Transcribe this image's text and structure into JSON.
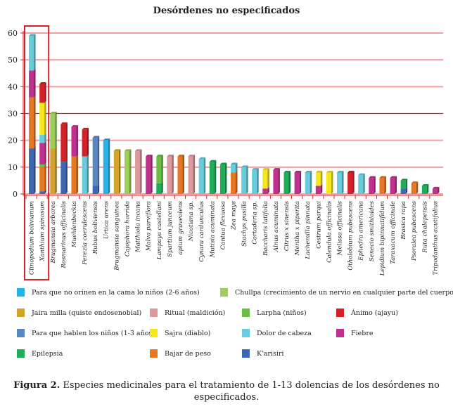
{
  "chart_data": {
    "type": "bar",
    "stacked": true,
    "title": "Desórdenes no especificados",
    "xlabel": "",
    "ylabel": "",
    "ylim": [
      0,
      60
    ],
    "yticks": [
      0,
      10,
      20,
      30,
      40,
      50,
      60
    ],
    "grid": true,
    "legend_position": "bottom",
    "highlight_box": [
      "Clinopodium bolivianum",
      "Xanthium spinosum"
    ],
    "legend": [
      {
        "key": "orinen",
        "label": "Para que no orinen en la cama lo niños (2-6 años)",
        "color": "#29B2E8"
      },
      {
        "key": "chullpa",
        "label": "Chullpa (crecimiento de un nervio en cualquier parte del cuerpo)",
        "color": "#9BCF5A"
      },
      {
        "key": "jaira",
        "label": "Jaira milla (quiste endosenobial)",
        "color": "#D4A32A"
      },
      {
        "key": "ritual",
        "label": "Ritual (maldición)",
        "color": "#DC9A9C"
      },
      {
        "key": "larpha",
        "label": "Larpha (niños)",
        "color": "#6ABE45"
      },
      {
        "key": "animo",
        "label": "Ánimo (ajayu)",
        "color": "#D52027"
      },
      {
        "key": "hablen",
        "label": "Para que hablen los niños (1-3 años)",
        "color": "#5A87BD"
      },
      {
        "key": "sajra",
        "label": "Sajra (diablo)",
        "color": "#F5E81A"
      },
      {
        "key": "dolor",
        "label": "Dolor de cabeza",
        "color": "#67CCDC"
      },
      {
        "key": "fiebre",
        "label": "Fiebre",
        "color": "#C2308F"
      },
      {
        "key": "epilepsia",
        "label": "Epilepsia",
        "color": "#1FAD59"
      },
      {
        "key": "bajar",
        "label": "Bajar de peso",
        "color": "#E87722"
      },
      {
        "key": "karisiri",
        "label": "K'arisiri",
        "color": "#3D66B3"
      }
    ],
    "categories": [
      {
        "name": "Clinopodium bolivianum",
        "stack": [
          [
            "karisiri",
            17
          ],
          [
            "bajar",
            19
          ],
          [
            "fiebre",
            10
          ],
          [
            "dolor",
            13
          ]
        ]
      },
      {
        "name": "Xanthium spinosum",
        "stack": [
          [
            "karisiri",
            1
          ],
          [
            "bajar",
            9
          ],
          [
            "larpha",
            1
          ],
          [
            "fiebre",
            8
          ],
          [
            "dolor",
            3
          ],
          [
            "sajra",
            12
          ],
          [
            "animo",
            7
          ]
        ]
      },
      {
        "name": "Brugmansia arborea",
        "stack": [
          [
            "jaira",
            17
          ],
          [
            "chullpa",
            13
          ]
        ]
      },
      {
        "name": "Rosmarinus officinalis",
        "stack": [
          [
            "karisiri",
            12
          ],
          [
            "animo",
            14
          ]
        ]
      },
      {
        "name": "Muehlenbeckia",
        "stack": [
          [
            "bajar",
            14
          ],
          [
            "fiebre",
            11
          ]
        ]
      },
      {
        "name": "Perezia coerulescens",
        "stack": [
          [
            "dolor",
            14
          ],
          [
            "animo",
            10
          ]
        ]
      },
      {
        "name": "Rubus boliviensis",
        "stack": [
          [
            "karisiri",
            3
          ],
          [
            "hablen",
            18
          ]
        ]
      },
      {
        "name": "Urtica urens",
        "stack": [
          [
            "orinen",
            20
          ]
        ]
      },
      {
        "name": "Brugmansia sanguinea",
        "stack": [
          [
            "jaira",
            16
          ]
        ]
      },
      {
        "name": "Cajophora horrida",
        "stack": [
          [
            "chullpa",
            16
          ]
        ]
      },
      {
        "name": "Matthiola incana",
        "stack": [
          [
            "ritual",
            16
          ]
        ]
      },
      {
        "name": "Malva parviflora",
        "stack": [
          [
            "fiebre",
            14
          ]
        ]
      },
      {
        "name": "Lampaya castellani",
        "stack": [
          [
            "epilepsia",
            4
          ],
          [
            "larpha",
            10
          ]
        ]
      },
      {
        "name": "Spartium junceum",
        "stack": [
          [
            "ritual",
            14
          ]
        ]
      },
      {
        "name": "apium graveolens",
        "stack": [
          [
            "bajar",
            14
          ]
        ]
      },
      {
        "name": "Nicotiana sp.",
        "stack": [
          [
            "ritual",
            14
          ]
        ]
      },
      {
        "name": "Cynara cardunculus",
        "stack": [
          [
            "dolor",
            13
          ]
        ]
      },
      {
        "name": "Mutisia acuminata",
        "stack": [
          [
            "epilepsia",
            12
          ]
        ]
      },
      {
        "name": "Cantua flexuosa",
        "stack": [
          [
            "epilepsia",
            11
          ]
        ]
      },
      {
        "name": "Zea mays",
        "stack": [
          [
            "bajar",
            8
          ],
          [
            "dolor",
            3
          ]
        ]
      },
      {
        "name": "Stachys pusilla",
        "stack": [
          [
            "dolor",
            10
          ]
        ]
      },
      {
        "name": "Cortaderia sp.",
        "stack": [
          [
            "dolor",
            9
          ]
        ]
      },
      {
        "name": "Baccharis latifolia",
        "stack": [
          [
            "fiebre",
            2
          ],
          [
            "sajra",
            7
          ]
        ]
      },
      {
        "name": "Alnus acuminata",
        "stack": [
          [
            "fiebre",
            9
          ]
        ]
      },
      {
        "name": "Citrus x sinensis",
        "stack": [
          [
            "epilepsia",
            8
          ]
        ]
      },
      {
        "name": "Mentha x piperita",
        "stack": [
          [
            "fiebre",
            8
          ]
        ]
      },
      {
        "name": "Lachemilla pinnata",
        "stack": [
          [
            "dolor",
            8
          ]
        ]
      },
      {
        "name": "Cestrum parqui",
        "stack": [
          [
            "fiebre",
            3
          ],
          [
            "sajra",
            5
          ]
        ]
      },
      {
        "name": "Calendula officinalis",
        "stack": [
          [
            "sajra",
            8
          ]
        ]
      },
      {
        "name": "Melissa officinalis",
        "stack": [
          [
            "dolor",
            8
          ]
        ]
      },
      {
        "name": "Otholobium pubescens",
        "stack": [
          [
            "animo",
            8
          ]
        ]
      },
      {
        "name": "Ephedra americana",
        "stack": [
          [
            "dolor",
            7
          ]
        ]
      },
      {
        "name": "Senecio smithioides",
        "stack": [
          [
            "fiebre",
            6
          ]
        ]
      },
      {
        "name": "Lepidium bipinnatifidum",
        "stack": [
          [
            "bajar",
            6
          ]
        ]
      },
      {
        "name": "Taraxacum officinale",
        "stack": [
          [
            "fiebre",
            6
          ]
        ]
      },
      {
        "name": "Brasica rapa",
        "stack": [
          [
            "karisiri",
            2
          ],
          [
            "epilepsia",
            3
          ]
        ]
      },
      {
        "name": "Psoralea pubescens",
        "stack": [
          [
            "bajar",
            4
          ]
        ]
      },
      {
        "name": "Ruta chalepensis",
        "stack": [
          [
            "epilepsia",
            3
          ]
        ]
      },
      {
        "name": "Tripodanthus acutifolius",
        "stack": [
          [
            "fiebre",
            2
          ]
        ]
      }
    ]
  },
  "caption": {
    "label": "Figura 2.",
    "text": " Especies medicinales para el tratamiento de 1-13 dolencias de los desórdenes no especificados."
  }
}
